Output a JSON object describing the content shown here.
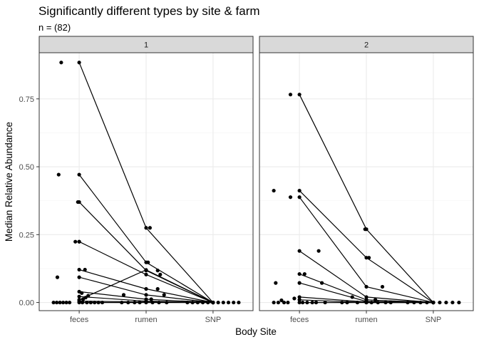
{
  "chart_data": {
    "type": "scatter",
    "title": "Significantly different types by site & farm",
    "subtitle": "n = (82)",
    "xlabel": "Body Site",
    "ylabel": "Median Relative Abundance",
    "categories": [
      "feces",
      "rumen",
      "SNP"
    ],
    "ylim": [
      -0.03,
      0.92
    ],
    "yticks": [
      0.0,
      0.25,
      0.5,
      0.75
    ],
    "ytick_labels": [
      "0.00",
      "0.25",
      "0.50",
      "0.75"
    ],
    "grid": true,
    "colors": {
      "points": "#000000",
      "lines": "#000000",
      "panel_background": "#ffffff",
      "panel_border": "#333333",
      "grid_major": "#ebebeb",
      "grid_minor": "#f5f5f5",
      "strip_background": "#d9d9d9"
    },
    "panels": [
      {
        "label": "1",
        "lines": [
          [
            0.884,
            0.275,
            0.0
          ],
          [
            0.471,
            0.148,
            0.0
          ],
          [
            0.37,
            0.118,
            0.0
          ],
          [
            0.224,
            0.103,
            0.0
          ],
          [
            0.121,
            0.05,
            0.0
          ],
          [
            0.093,
            0.028,
            0.0
          ],
          [
            0.04,
            0.012,
            0.0
          ],
          [
            0.022,
            0.005,
            0.0
          ],
          [
            0.01,
            0.12,
            0.0
          ],
          [
            0.005,
            0.002,
            0.0
          ],
          [
            0.0,
            0.0,
            0.0
          ]
        ],
        "points": [
          {
            "x": "feces",
            "y": 0.884,
            "dx": -0.28
          },
          {
            "x": "feces",
            "y": 0.471,
            "dx": -0.32
          },
          {
            "x": "feces",
            "y": 0.37,
            "dx": -0.02
          },
          {
            "x": "feces",
            "y": 0.224,
            "dx": -0.06
          },
          {
            "x": "feces",
            "y": 0.224,
            "dx": 0.0
          },
          {
            "x": "feces",
            "y": 0.121,
            "dx": 0.09
          },
          {
            "x": "feces",
            "y": 0.093,
            "dx": -0.34
          },
          {
            "x": "feces",
            "y": 0.035,
            "dx": 0.04
          },
          {
            "x": "feces",
            "y": 0.025,
            "dx": 0.14
          },
          {
            "x": "feces",
            "y": 0.018,
            "dx": 0.1
          },
          {
            "x": "feces",
            "y": 0.012,
            "dx": 0.06
          },
          {
            "x": "feces",
            "y": 0.0,
            "dx": -0.4
          },
          {
            "x": "feces",
            "y": 0.0,
            "dx": -0.35
          },
          {
            "x": "feces",
            "y": 0.0,
            "dx": -0.3
          },
          {
            "x": "feces",
            "y": 0.0,
            "dx": -0.25
          },
          {
            "x": "feces",
            "y": 0.0,
            "dx": -0.2
          },
          {
            "x": "feces",
            "y": 0.0,
            "dx": -0.15
          },
          {
            "x": "feces",
            "y": 0.0,
            "dx": 0.05
          },
          {
            "x": "feces",
            "y": 0.0,
            "dx": 0.12
          },
          {
            "x": "feces",
            "y": 0.0,
            "dx": 0.18
          },
          {
            "x": "feces",
            "y": 0.0,
            "dx": 0.24
          },
          {
            "x": "feces",
            "y": 0.0,
            "dx": 0.3
          },
          {
            "x": "feces",
            "y": 0.0,
            "dx": 0.36
          },
          {
            "x": "rumen",
            "y": 0.275,
            "dx": 0.06
          },
          {
            "x": "rumen",
            "y": 0.148,
            "dx": 0.03
          },
          {
            "x": "rumen",
            "y": 0.118,
            "dx": 0.18
          },
          {
            "x": "rumen",
            "y": 0.103,
            "dx": 0.22
          },
          {
            "x": "rumen",
            "y": 0.05,
            "dx": 0.18
          },
          {
            "x": "rumen",
            "y": 0.028,
            "dx": -0.35
          },
          {
            "x": "rumen",
            "y": 0.028,
            "dx": 0.28
          },
          {
            "x": "rumen",
            "y": 0.012,
            "dx": 0.08
          },
          {
            "x": "rumen",
            "y": 0.0,
            "dx": -0.38
          },
          {
            "x": "rumen",
            "y": 0.0,
            "dx": -0.28
          },
          {
            "x": "rumen",
            "y": 0.0,
            "dx": -0.18
          },
          {
            "x": "rumen",
            "y": 0.0,
            "dx": -0.1
          },
          {
            "x": "rumen",
            "y": 0.0,
            "dx": 0.1
          },
          {
            "x": "rumen",
            "y": 0.0,
            "dx": 0.2
          },
          {
            "x": "rumen",
            "y": 0.0,
            "dx": 0.32
          },
          {
            "x": "SNP",
            "y": 0.0,
            "dx": -0.4
          },
          {
            "x": "SNP",
            "y": 0.0,
            "dx": -0.32
          },
          {
            "x": "SNP",
            "y": 0.0,
            "dx": -0.24
          },
          {
            "x": "SNP",
            "y": 0.0,
            "dx": -0.16
          },
          {
            "x": "SNP",
            "y": 0.0,
            "dx": -0.08
          },
          {
            "x": "SNP",
            "y": 0.0,
            "dx": 0.08
          },
          {
            "x": "SNP",
            "y": 0.0,
            "dx": 0.16
          },
          {
            "x": "SNP",
            "y": 0.0,
            "dx": 0.24
          },
          {
            "x": "SNP",
            "y": 0.0,
            "dx": 0.32
          },
          {
            "x": "SNP",
            "y": 0.0,
            "dx": 0.4
          }
        ]
      },
      {
        "label": "2",
        "lines": [
          [
            0.766,
            0.27,
            0.0
          ],
          [
            0.412,
            0.165,
            0.0
          ],
          [
            0.388,
            0.058,
            0.0
          ],
          [
            0.19,
            0.02,
            0.0
          ],
          [
            0.105,
            0.01,
            0.0
          ],
          [
            0.072,
            0.004,
            0.0
          ],
          [
            0.02,
            0.002,
            0.0
          ],
          [
            0.01,
            0.0,
            0.0
          ],
          [
            0.0,
            0.0,
            0.0
          ]
        ],
        "points": [
          {
            "x": "feces",
            "y": 0.766,
            "dx": -0.14
          },
          {
            "x": "feces",
            "y": 0.412,
            "dx": -0.4
          },
          {
            "x": "feces",
            "y": 0.388,
            "dx": -0.14
          },
          {
            "x": "feces",
            "y": 0.19,
            "dx": 0.3
          },
          {
            "x": "feces",
            "y": 0.105,
            "dx": 0.08
          },
          {
            "x": "feces",
            "y": 0.072,
            "dx": -0.37
          },
          {
            "x": "feces",
            "y": 0.072,
            "dx": 0.35
          },
          {
            "x": "feces",
            "y": 0.015,
            "dx": -0.08
          },
          {
            "x": "feces",
            "y": 0.008,
            "dx": -0.28
          },
          {
            "x": "feces",
            "y": 0.0,
            "dx": -0.4
          },
          {
            "x": "feces",
            "y": 0.0,
            "dx": -0.33
          },
          {
            "x": "feces",
            "y": 0.0,
            "dx": -0.24
          },
          {
            "x": "feces",
            "y": 0.0,
            "dx": -0.18
          },
          {
            "x": "feces",
            "y": 0.0,
            "dx": 0.05
          },
          {
            "x": "feces",
            "y": 0.0,
            "dx": 0.12
          },
          {
            "x": "feces",
            "y": 0.0,
            "dx": 0.2
          },
          {
            "x": "feces",
            "y": 0.0,
            "dx": 0.26
          },
          {
            "x": "feces",
            "y": 0.0,
            "dx": 0.4
          },
          {
            "x": "rumen",
            "y": 0.27,
            "dx": -0.02
          },
          {
            "x": "rumen",
            "y": 0.165,
            "dx": 0.04
          },
          {
            "x": "rumen",
            "y": 0.058,
            "dx": 0.25
          },
          {
            "x": "rumen",
            "y": 0.02,
            "dx": -0.22
          },
          {
            "x": "rumen",
            "y": 0.01,
            "dx": 0.14
          },
          {
            "x": "rumen",
            "y": 0.0,
            "dx": -0.38
          },
          {
            "x": "rumen",
            "y": 0.0,
            "dx": -0.3
          },
          {
            "x": "rumen",
            "y": 0.0,
            "dx": -0.14
          },
          {
            "x": "rumen",
            "y": 0.0,
            "dx": 0.08
          },
          {
            "x": "rumen",
            "y": 0.0,
            "dx": 0.18
          },
          {
            "x": "rumen",
            "y": 0.0,
            "dx": 0.3
          },
          {
            "x": "rumen",
            "y": 0.0,
            "dx": 0.38
          },
          {
            "x": "SNP",
            "y": 0.0,
            "dx": -0.4
          },
          {
            "x": "SNP",
            "y": 0.0,
            "dx": -0.3
          },
          {
            "x": "SNP",
            "y": 0.0,
            "dx": -0.2
          },
          {
            "x": "SNP",
            "y": 0.0,
            "dx": -0.1
          },
          {
            "x": "SNP",
            "y": 0.0,
            "dx": 0.1
          },
          {
            "x": "SNP",
            "y": 0.0,
            "dx": 0.2
          },
          {
            "x": "SNP",
            "y": 0.0,
            "dx": 0.3
          },
          {
            "x": "SNP",
            "y": 0.0,
            "dx": 0.4
          }
        ]
      }
    ]
  }
}
